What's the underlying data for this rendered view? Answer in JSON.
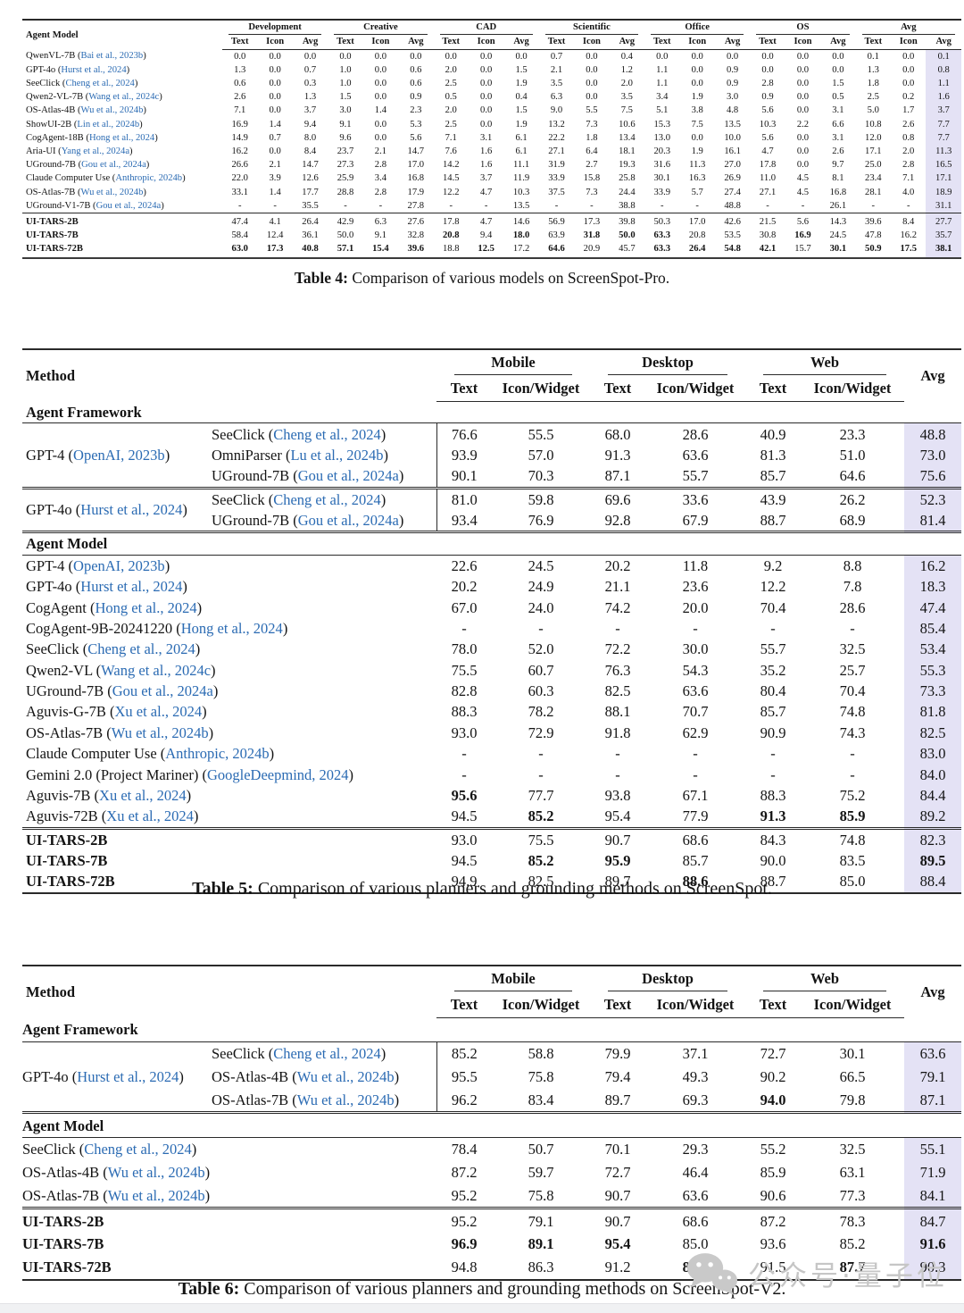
{
  "colors": {
    "accent_link": "#2b6bb3",
    "avg_highlight": "#e4e2f5",
    "watermark": "#c6c6c6"
  },
  "watermark": {
    "text": "公众号·量子位",
    "icon": "wechat-icon"
  },
  "table4": {
    "caption": {
      "label": "Table 4:",
      "text": "Comparison of various models on ScreenSpot-Pro."
    },
    "header": {
      "stub": "Agent Model",
      "groups": [
        "Development",
        "Creative",
        "CAD",
        "Scientific",
        "Office",
        "OS",
        "Avg"
      ],
      "subcols": [
        "Text",
        "Icon",
        "Avg"
      ]
    },
    "rows": [
      {
        "name": "QwenVL-7B",
        "cite": "Bai et al., 2023b",
        "values": [
          "0.0",
          "0.0",
          "0.0",
          "0.0",
          "0.0",
          "0.0",
          "0.0",
          "0.0",
          "0.0",
          "0.7",
          "0.0",
          "0.4",
          "0.0",
          "0.0",
          "0.0",
          "0.0",
          "0.0",
          "0.0",
          "0.1",
          "0.0",
          "0.1"
        ],
        "bold": []
      },
      {
        "name": "GPT-4o",
        "cite": "Hurst et al., 2024",
        "values": [
          "1.3",
          "0.0",
          "0.7",
          "1.0",
          "0.0",
          "0.6",
          "2.0",
          "0.0",
          "1.5",
          "2.1",
          "0.0",
          "1.2",
          "1.1",
          "0.0",
          "0.9",
          "0.0",
          "0.0",
          "0.0",
          "1.3",
          "0.0",
          "0.8"
        ],
        "bold": []
      },
      {
        "name": "SeeClick",
        "cite": "Cheng et al., 2024",
        "values": [
          "0.6",
          "0.0",
          "0.3",
          "1.0",
          "0.0",
          "0.6",
          "2.5",
          "0.0",
          "1.9",
          "3.5",
          "0.0",
          "2.0",
          "1.1",
          "0.0",
          "0.9",
          "2.8",
          "0.0",
          "1.5",
          "1.8",
          "0.0",
          "1.1"
        ],
        "bold": []
      },
      {
        "name": "Qwen2-VL-7B",
        "cite": "Wang et al., 2024c",
        "values": [
          "2.6",
          "0.0",
          "1.3",
          "1.5",
          "0.0",
          "0.9",
          "0.5",
          "0.0",
          "0.4",
          "6.3",
          "0.0",
          "3.5",
          "3.4",
          "1.9",
          "3.0",
          "0.9",
          "0.0",
          "0.5",
          "2.5",
          "0.2",
          "1.6"
        ],
        "bold": []
      },
      {
        "name": "OS-Atlas-4B",
        "cite": "Wu et al., 2024b",
        "values": [
          "7.1",
          "0.0",
          "3.7",
          "3.0",
          "1.4",
          "2.3",
          "2.0",
          "0.0",
          "1.5",
          "9.0",
          "5.5",
          "7.5",
          "5.1",
          "3.8",
          "4.8",
          "5.6",
          "0.0",
          "3.1",
          "5.0",
          "1.7",
          "3.7"
        ],
        "bold": []
      },
      {
        "name": "ShowUI-2B",
        "cite": "Lin et al., 2024b",
        "values": [
          "16.9",
          "1.4",
          "9.4",
          "9.1",
          "0.0",
          "5.3",
          "2.5",
          "0.0",
          "1.9",
          "13.2",
          "7.3",
          "10.6",
          "15.3",
          "7.5",
          "13.5",
          "10.3",
          "2.2",
          "6.6",
          "10.8",
          "2.6",
          "7.7"
        ],
        "bold": []
      },
      {
        "name": "CogAgent-18B",
        "cite": "Hong et al., 2024",
        "values": [
          "14.9",
          "0.7",
          "8.0",
          "9.6",
          "0.0",
          "5.6",
          "7.1",
          "3.1",
          "6.1",
          "22.2",
          "1.8",
          "13.4",
          "13.0",
          "0.0",
          "10.0",
          "5.6",
          "0.0",
          "3.1",
          "12.0",
          "0.8",
          "7.7"
        ],
        "bold": []
      },
      {
        "name": "Aria-UI",
        "cite": "Yang et al., 2024a",
        "values": [
          "16.2",
          "0.0",
          "8.4",
          "23.7",
          "2.1",
          "14.7",
          "7.6",
          "1.6",
          "6.1",
          "27.1",
          "6.4",
          "18.1",
          "20.3",
          "1.9",
          "16.1",
          "4.7",
          "0.0",
          "2.6",
          "17.1",
          "2.0",
          "11.3"
        ],
        "bold": []
      },
      {
        "name": "UGround-7B",
        "cite": "Gou et al., 2024a",
        "values": [
          "26.6",
          "2.1",
          "14.7",
          "27.3",
          "2.8",
          "17.0",
          "14.2",
          "1.6",
          "11.1",
          "31.9",
          "2.7",
          "19.3",
          "31.6",
          "11.3",
          "27.0",
          "17.8",
          "0.0",
          "9.7",
          "25.0",
          "2.8",
          "16.5"
        ],
        "bold": []
      },
      {
        "name": "Claude Computer Use",
        "cite": "Anthropic, 2024b",
        "values": [
          "22.0",
          "3.9",
          "12.6",
          "25.9",
          "3.4",
          "16.8",
          "14.5",
          "3.7",
          "11.9",
          "33.9",
          "15.8",
          "25.8",
          "30.1",
          "16.3",
          "26.9",
          "11.0",
          "4.5",
          "8.1",
          "23.4",
          "7.1",
          "17.1"
        ],
        "bold": []
      },
      {
        "name": "OS-Atlas-7B",
        "cite": "Wu et al., 2024b",
        "values": [
          "33.1",
          "1.4",
          "17.7",
          "28.8",
          "2.8",
          "17.9",
          "12.2",
          "4.7",
          "10.3",
          "37.5",
          "7.3",
          "24.4",
          "33.9",
          "5.7",
          "27.4",
          "27.1",
          "4.5",
          "16.8",
          "28.1",
          "4.0",
          "18.9"
        ],
        "bold": []
      },
      {
        "name": "UGround-V1-7B",
        "cite": "Gou et al., 2024a",
        "values": [
          "-",
          "-",
          "35.5",
          "-",
          "-",
          "27.8",
          "-",
          "-",
          "13.5",
          "-",
          "-",
          "38.8",
          "-",
          "-",
          "48.8",
          "-",
          "-",
          "26.1",
          "-",
          "-",
          "31.1"
        ],
        "bold": []
      },
      {
        "name": "UI-TARS-2B",
        "ours": true,
        "values": [
          "47.4",
          "4.1",
          "26.4",
          "42.9",
          "6.3",
          "27.6",
          "17.8",
          "4.7",
          "14.6",
          "56.9",
          "17.3",
          "39.8",
          "50.3",
          "17.0",
          "42.6",
          "21.5",
          "5.6",
          "14.3",
          "39.6",
          "8.4",
          "27.7"
        ],
        "bold": []
      },
      {
        "name": "UI-TARS-7B",
        "ours": true,
        "values": [
          "58.4",
          "12.4",
          "36.1",
          "50.0",
          "9.1",
          "32.8",
          "20.8",
          "9.4",
          "18.0",
          "63.9",
          "31.8",
          "50.0",
          "63.3",
          "20.8",
          "53.5",
          "30.8",
          "16.9",
          "24.5",
          "47.8",
          "16.2",
          "35.7"
        ],
        "bold": [
          6,
          8,
          10,
          11,
          12,
          16
        ]
      },
      {
        "name": "UI-TARS-72B",
        "ours": true,
        "values": [
          "63.0",
          "17.3",
          "40.8",
          "57.1",
          "15.4",
          "39.6",
          "18.8",
          "12.5",
          "17.2",
          "64.6",
          "20.9",
          "45.7",
          "63.3",
          "26.4",
          "54.8",
          "42.1",
          "15.7",
          "30.1",
          "50.9",
          "17.5",
          "38.1"
        ],
        "bold": [
          0,
          1,
          2,
          3,
          4,
          5,
          7,
          9,
          12,
          13,
          14,
          15,
          17,
          18,
          19,
          20
        ]
      }
    ]
  },
  "table5": {
    "caption": {
      "label": "Table 5:",
      "text": "Comparison of various planners and grounding methods on ScreenSpot."
    },
    "header": {
      "stub": "Method",
      "groups": [
        "Mobile",
        "Desktop",
        "Web"
      ],
      "subcols": [
        "Text",
        "Icon/Widget"
      ],
      "avg": "Avg"
    },
    "sections": [
      {
        "kind": "label",
        "text": "Agent Framework"
      },
      {
        "kind": "group",
        "name": "GPT-4",
        "cite": "OpenAI, 2023b",
        "rows": [
          {
            "name": "SeeClick",
            "cite": "Cheng et al., 2024",
            "values": [
              "76.6",
              "55.5",
              "68.0",
              "28.6",
              "40.9",
              "23.3",
              "48.8"
            ],
            "bold": []
          },
          {
            "name": "OmniParser",
            "cite": "Lu et al., 2024b",
            "values": [
              "93.9",
              "57.0",
              "91.3",
              "63.6",
              "81.3",
              "51.0",
              "73.0"
            ],
            "bold": []
          },
          {
            "name": "UGround-7B",
            "cite": "Gou et al., 2024a",
            "values": [
              "90.1",
              "70.3",
              "87.1",
              "55.7",
              "85.7",
              "64.6",
              "75.6"
            ],
            "bold": []
          }
        ]
      },
      {
        "kind": "group",
        "name": "GPT-4o",
        "cite": "Hurst et al., 2024",
        "rows": [
          {
            "name": "SeeClick",
            "cite": "Cheng et al., 2024",
            "values": [
              "81.0",
              "59.8",
              "69.6",
              "33.6",
              "43.9",
              "26.2",
              "52.3"
            ],
            "bold": []
          },
          {
            "name": "UGround-7B",
            "cite": "Gou et al., 2024a",
            "values": [
              "93.4",
              "76.9",
              "92.8",
              "67.9",
              "88.7",
              "68.9",
              "81.4"
            ],
            "bold": []
          }
        ]
      },
      {
        "kind": "label",
        "text": "Agent Model"
      },
      {
        "kind": "flat",
        "rows": [
          {
            "name": "GPT-4",
            "cite": "OpenAI, 2023b",
            "values": [
              "22.6",
              "24.5",
              "20.2",
              "11.8",
              "9.2",
              "8.8",
              "16.2"
            ],
            "bold": []
          },
          {
            "name": "GPT-4o",
            "cite": "Hurst et al., 2024",
            "values": [
              "20.2",
              "24.9",
              "21.1",
              "23.6",
              "12.2",
              "7.8",
              "18.3"
            ],
            "bold": []
          },
          {
            "name": "CogAgent",
            "cite": "Hong et al., 2024",
            "values": [
              "67.0",
              "24.0",
              "74.2",
              "20.0",
              "70.4",
              "28.6",
              "47.4"
            ],
            "bold": []
          },
          {
            "name": "CogAgent-9B-20241220",
            "cite": "Hong et al., 2024",
            "values": [
              "-",
              "-",
              "-",
              "-",
              "-",
              "-",
              "85.4"
            ],
            "bold": []
          },
          {
            "name": "SeeClick",
            "cite": "Cheng et al., 2024",
            "values": [
              "78.0",
              "52.0",
              "72.2",
              "30.0",
              "55.7",
              "32.5",
              "53.4"
            ],
            "bold": []
          },
          {
            "name": "Qwen2-VL",
            "cite": "Wang et al., 2024c",
            "values": [
              "75.5",
              "60.7",
              "76.3",
              "54.3",
              "35.2",
              "25.7",
              "55.3"
            ],
            "bold": []
          },
          {
            "name": "UGround-7B",
            "cite": "Gou et al., 2024a",
            "values": [
              "82.8",
              "60.3",
              "82.5",
              "63.6",
              "80.4",
              "70.4",
              "73.3"
            ],
            "bold": []
          },
          {
            "name": "Aguvis-G-7B",
            "cite": "Xu et al., 2024",
            "values": [
              "88.3",
              "78.2",
              "88.1",
              "70.7",
              "85.7",
              "74.8",
              "81.8"
            ],
            "bold": []
          },
          {
            "name": "OS-Atlas-7B",
            "cite": "Wu et al., 2024b",
            "values": [
              "93.0",
              "72.9",
              "91.8",
              "62.9",
              "90.9",
              "74.3",
              "82.5"
            ],
            "bold": []
          },
          {
            "name": "Claude Computer Use",
            "cite": "Anthropic, 2024b",
            "values": [
              "-",
              "-",
              "-",
              "-",
              "-",
              "-",
              "83.0"
            ],
            "bold": []
          },
          {
            "name": "Gemini 2.0 (Project Mariner)",
            "cite": "GoogleDeepmind, 2024",
            "values": [
              "-",
              "-",
              "-",
              "-",
              "-",
              "-",
              "84.0"
            ],
            "bold": []
          },
          {
            "name": "Aguvis-7B",
            "cite": "Xu et al., 2024",
            "values": [
              "95.6",
              "77.7",
              "93.8",
              "67.1",
              "88.3",
              "75.2",
              "84.4"
            ],
            "bold": [
              0
            ]
          },
          {
            "name": "Aguvis-72B",
            "cite": "Xu et al., 2024",
            "values": [
              "94.5",
              "85.2",
              "95.4",
              "77.9",
              "91.3",
              "85.9",
              "89.2"
            ],
            "bold": [
              1,
              4,
              5
            ]
          }
        ]
      },
      {
        "kind": "ours",
        "rows": [
          {
            "name": "UI-TARS-2B",
            "ours": true,
            "values": [
              "93.0",
              "75.5",
              "90.7",
              "68.6",
              "84.3",
              "74.8",
              "82.3"
            ],
            "bold": []
          },
          {
            "name": "UI-TARS-7B",
            "ours": true,
            "values": [
              "94.5",
              "85.2",
              "95.9",
              "85.7",
              "90.0",
              "83.5",
              "89.5"
            ],
            "bold": [
              1,
              2,
              6
            ]
          },
          {
            "name": "UI-TARS-72B",
            "ours": true,
            "values": [
              "94.9",
              "82.5",
              "89.7",
              "88.6",
              "88.7",
              "85.0",
              "88.4"
            ],
            "bold": [
              3
            ]
          }
        ]
      }
    ]
  },
  "table6": {
    "caption": {
      "label": "Table 6:",
      "text": "Comparison of various planners and grounding methods on ScreenSpot-V2."
    },
    "header": {
      "stub": "Method",
      "groups": [
        "Mobile",
        "Desktop",
        "Web"
      ],
      "subcols": [
        "Text",
        "Icon/Widget"
      ],
      "avg": "Avg"
    },
    "sections": [
      {
        "kind": "label",
        "text": "Agent Framework"
      },
      {
        "kind": "group",
        "name": "GPT-4o",
        "cite": "Hurst et al., 2024",
        "rows": [
          {
            "name": "SeeClick",
            "cite": "Cheng et al., 2024",
            "values": [
              "85.2",
              "58.8",
              "79.9",
              "37.1",
              "72.7",
              "30.1",
              "63.6"
            ],
            "bold": []
          },
          {
            "name": "OS-Atlas-4B",
            "cite": "Wu et al., 2024b",
            "values": [
              "95.5",
              "75.8",
              "79.4",
              "49.3",
              "90.2",
              "66.5",
              "79.1"
            ],
            "bold": []
          },
          {
            "name": "OS-Atlas-7B",
            "cite": "Wu et al., 2024b",
            "values": [
              "96.2",
              "83.4",
              "89.7",
              "69.3",
              "94.0",
              "79.8",
              "87.1"
            ],
            "bold": [
              4
            ]
          }
        ]
      },
      {
        "kind": "label",
        "text": "Agent Model"
      },
      {
        "kind": "flat",
        "rows": [
          {
            "name": "SeeClick",
            "cite": "Cheng et al., 2024",
            "values": [
              "78.4",
              "50.7",
              "70.1",
              "29.3",
              "55.2",
              "32.5",
              "55.1"
            ],
            "bold": []
          },
          {
            "name": "OS-Atlas-4B",
            "cite": "Wu et al., 2024b",
            "values": [
              "87.2",
              "59.7",
              "72.7",
              "46.4",
              "85.9",
              "63.1",
              "71.9"
            ],
            "bold": []
          },
          {
            "name": "OS-Atlas-7B",
            "cite": "Wu et al., 2024b",
            "values": [
              "95.2",
              "75.8",
              "90.7",
              "63.6",
              "90.6",
              "77.3",
              "84.1"
            ],
            "bold": []
          }
        ]
      },
      {
        "kind": "ours",
        "rows": [
          {
            "name": "UI-TARS-2B",
            "ours": true,
            "values": [
              "95.2",
              "79.1",
              "90.7",
              "68.6",
              "87.2",
              "78.3",
              "84.7"
            ],
            "bold": []
          },
          {
            "name": "UI-TARS-7B",
            "ours": true,
            "values": [
              "96.9",
              "89.1",
              "95.4",
              "85.0",
              "93.6",
              "85.2",
              "91.6"
            ],
            "bold": [
              0,
              1,
              2,
              6
            ]
          },
          {
            "name": "UI-TARS-72B",
            "ours": true,
            "values": [
              "94.8",
              "86.3",
              "91.2",
              "87.9",
              "91.5",
              "87.7",
              "90.3"
            ],
            "bold": [
              3,
              5
            ]
          }
        ]
      }
    ]
  }
}
